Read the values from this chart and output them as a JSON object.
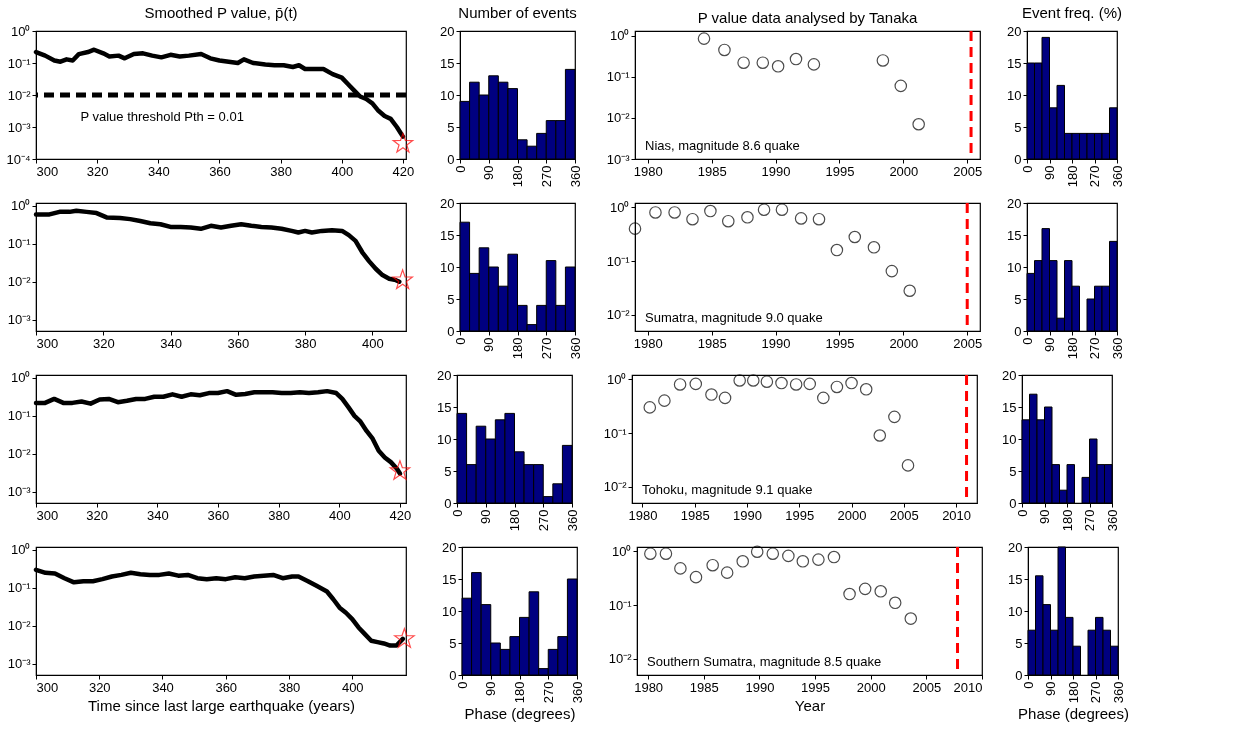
{
  "chart_data": [
    {
      "type": "line",
      "title": "Smoothed P value, p̄(t)",
      "log": true,
      "xlim": [
        300,
        421
      ],
      "xticks": [
        300,
        320,
        340,
        360,
        380,
        400,
        420
      ],
      "ylim": [
        0.0001,
        1
      ],
      "yticks": [
        {
          "value": 1,
          "label": "10⁰"
        },
        {
          "value": 0.1,
          "label": "10⁻¹"
        },
        {
          "value": 0.01,
          "label": "10⁻²"
        },
        {
          "value": 0.001,
          "label": "10⁻³"
        },
        {
          "value": 0.0001,
          "label": "10⁻⁴"
        }
      ],
      "series": [
        {
          "color": "#000000",
          "x": [
            300,
            303,
            306,
            308,
            310,
            312,
            314,
            317,
            319,
            322,
            324,
            327,
            329,
            332,
            335,
            338,
            341,
            344,
            347,
            350,
            354,
            357,
            360,
            363,
            366,
            368,
            371,
            375,
            378,
            381,
            384,
            386,
            388,
            391,
            394,
            397,
            400,
            402,
            404,
            406,
            408,
            410,
            412,
            414,
            416,
            418,
            420
          ],
          "values": [
            0.22,
            0.17,
            0.12,
            0.11,
            0.13,
            0.12,
            0.19,
            0.22,
            0.26,
            0.2,
            0.16,
            0.17,
            0.14,
            0.19,
            0.2,
            0.17,
            0.15,
            0.18,
            0.16,
            0.17,
            0.19,
            0.14,
            0.12,
            0.11,
            0.1,
            0.13,
            0.1,
            0.09,
            0.085,
            0.085,
            0.075,
            0.085,
            0.065,
            0.065,
            0.065,
            0.045,
            0.035,
            0.022,
            0.014,
            0.009,
            0.0075,
            0.0055,
            0.0032,
            0.0022,
            0.0018,
            0.001,
            0.0005
          ]
        },
        {
          "type": "scatter",
          "marker": "star",
          "color": "#ff0000",
          "x": [
            420
          ],
          "values": [
            0.0003
          ]
        }
      ],
      "ref_lines": [
        {
          "axis": "y",
          "value": 0.01,
          "label": "P value threshold Pth = 0.01",
          "color": "#000000",
          "line_style": "dashed"
        }
      ]
    },
    {
      "type": "histogram",
      "title": "Number of events",
      "bins": [
        0,
        30,
        60,
        90,
        120,
        150,
        180,
        210,
        240,
        270,
        300,
        330,
        360
      ],
      "values": [
        9,
        12,
        10,
        13,
        12,
        11,
        3,
        2,
        4,
        6,
        6,
        14
      ],
      "color": "#000080",
      "xlim": [
        0,
        360
      ],
      "xticks": [
        0,
        90,
        180,
        270,
        360
      ],
      "ylim": [
        0,
        20
      ],
      "yticks": [
        0,
        5,
        10,
        15,
        20
      ]
    },
    {
      "type": "scatter",
      "title": "P value data analysed by Tanaka",
      "marker": "circle",
      "color": "#000000",
      "log": true,
      "xlim": [
        1979,
        2006
      ],
      "xticks": [
        1980,
        1985,
        1990,
        1995,
        2000,
        2005
      ],
      "ylim": [
        0.001,
        1.3
      ],
      "yticks": [
        {
          "value": 1,
          "label": "10⁰"
        },
        {
          "value": 0.1,
          "label": "10⁻¹"
        },
        {
          "value": 0.01,
          "label": "10⁻²"
        },
        {
          "value": 0.001,
          "label": "10⁻³"
        }
      ],
      "x": [
        1984.4,
        1986,
        1987.5,
        1989,
        1990.2,
        1991.6,
        1993,
        1998.4,
        1999.8,
        2001.2
      ],
      "values": [
        0.85,
        0.45,
        0.22,
        0.22,
        0.18,
        0.27,
        0.2,
        0.25,
        0.06,
        0.007
      ],
      "ref_lines": [
        {
          "axis": "x",
          "value": 2005.3,
          "color": "#ff0000",
          "line_style": "dashed"
        }
      ],
      "annotations": [
        "Nias, magnitude 8.6 quake"
      ]
    },
    {
      "type": "histogram",
      "title": "Event freq. (%)",
      "bins": [
        0,
        30,
        60,
        90,
        120,
        150,
        180,
        210,
        240,
        270,
        300,
        330,
        360
      ],
      "values": [
        15,
        15,
        19,
        8,
        11.5,
        4,
        4,
        4,
        4,
        4,
        4,
        8
      ],
      "color": "#000080",
      "xlim": [
        0,
        360
      ],
      "xticks": [
        0,
        90,
        180,
        270,
        360
      ],
      "ylim": [
        0,
        20
      ],
      "yticks": [
        0,
        5,
        10,
        15,
        20
      ]
    },
    {
      "type": "line",
      "log": true,
      "xlim": [
        300,
        410
      ],
      "xticks": [
        300,
        320,
        340,
        360,
        380,
        400
      ],
      "ylim": [
        0.0005,
        1.2
      ],
      "yticks": [
        {
          "value": 1,
          "label": "10⁰"
        },
        {
          "value": 0.1,
          "label": "10⁻¹"
        },
        {
          "value": 0.01,
          "label": "10⁻²"
        },
        {
          "value": 0.001,
          "label": "10⁻³"
        }
      ],
      "series": [
        {
          "color": "#000000",
          "x": [
            300,
            304,
            307,
            310,
            312,
            315,
            318,
            321,
            325,
            328,
            331,
            334,
            337,
            340,
            343,
            346,
            349,
            352,
            355,
            358,
            361,
            364,
            367,
            370,
            373,
            376,
            378,
            380,
            382,
            385,
            388,
            391,
            393,
            395,
            397,
            399,
            401,
            403,
            405,
            407,
            408
          ],
          "values": [
            0.6,
            0.6,
            0.7,
            0.7,
            0.75,
            0.7,
            0.65,
            0.5,
            0.48,
            0.45,
            0.4,
            0.35,
            0.33,
            0.28,
            0.28,
            0.27,
            0.25,
            0.3,
            0.27,
            0.3,
            0.33,
            0.3,
            0.28,
            0.27,
            0.25,
            0.22,
            0.2,
            0.22,
            0.2,
            0.22,
            0.23,
            0.22,
            0.17,
            0.12,
            0.06,
            0.035,
            0.022,
            0.015,
            0.012,
            0.011,
            0.01
          ]
        },
        {
          "type": "scatter",
          "marker": "star",
          "color": "#ff0000",
          "x": [
            409
          ],
          "values": [
            0.011
          ]
        }
      ]
    },
    {
      "type": "histogram",
      "bins": [
        0,
        30,
        60,
        90,
        120,
        150,
        180,
        210,
        240,
        270,
        300,
        330,
        360
      ],
      "values": [
        17,
        9,
        13,
        10,
        7,
        12,
        4,
        1,
        4,
        11,
        4,
        10
      ],
      "color": "#000080",
      "xlim": [
        0,
        360
      ],
      "xticks": [
        0,
        90,
        180,
        270,
        360
      ],
      "ylim": [
        0,
        20
      ],
      "yticks": [
        0,
        5,
        10,
        15,
        20
      ]
    },
    {
      "type": "scatter",
      "marker": "circle",
      "color": "#000000",
      "log": true,
      "xlim": [
        1979,
        2006
      ],
      "xticks": [
        1980,
        1985,
        1990,
        1995,
        2000,
        2005
      ],
      "ylim": [
        0.005,
        1.2
      ],
      "yticks": [
        {
          "value": 1,
          "label": "10⁰"
        },
        {
          "value": 0.1,
          "label": "10⁻¹"
        },
        {
          "value": 0.01,
          "label": "10⁻²"
        }
      ],
      "x": [
        1979.0,
        1980.6,
        1982.1,
        1983.5,
        1984.9,
        1986.3,
        1987.8,
        1989.1,
        1990.5,
        1992.0,
        1993.4,
        1994.8,
        1996.2,
        1997.7,
        1999.1,
        2000.5
      ],
      "values": [
        0.4,
        0.8,
        0.8,
        0.6,
        0.85,
        0.55,
        0.65,
        0.9,
        0.9,
        0.62,
        0.6,
        0.16,
        0.28,
        0.18,
        0.065,
        0.028
      ],
      "ref_lines": [
        {
          "axis": "x",
          "value": 2005.0,
          "color": "#ff0000",
          "line_style": "dashed"
        }
      ],
      "annotations": [
        "Sumatra, magnitude 9.0 quake"
      ]
    },
    {
      "type": "histogram",
      "bins": [
        0,
        30,
        60,
        90,
        120,
        150,
        180,
        210,
        240,
        270,
        300,
        330,
        360
      ],
      "values": [
        9,
        11,
        16,
        11,
        2,
        11,
        7,
        0,
        5,
        7,
        7,
        14
      ],
      "color": "#000080",
      "xlim": [
        0,
        360
      ],
      "xticks": [
        0,
        90,
        180,
        270,
        360
      ],
      "ylim": [
        0,
        20
      ],
      "yticks": [
        0,
        5,
        10,
        15,
        20
      ]
    },
    {
      "type": "line",
      "log": true,
      "xlim": [
        300,
        422
      ],
      "xticks": [
        300,
        320,
        340,
        360,
        380,
        400,
        420
      ],
      "ylim": [
        0.0005,
        1.2
      ],
      "yticks": [
        {
          "value": 1,
          "label": "10⁰"
        },
        {
          "value": 0.1,
          "label": "10⁻¹"
        },
        {
          "value": 0.01,
          "label": "10⁻²"
        },
        {
          "value": 0.001,
          "label": "10⁻³"
        }
      ],
      "series": [
        {
          "color": "#000000",
          "x": [
            300,
            303,
            306,
            309,
            312,
            315,
            318,
            321,
            324,
            327,
            330,
            333,
            336,
            339,
            342,
            345,
            348,
            351,
            354,
            357,
            360,
            363,
            366,
            369,
            372,
            375,
            378,
            381,
            384,
            387,
            390,
            393,
            396,
            399,
            401,
            403,
            405,
            407,
            409,
            411,
            413,
            415,
            417,
            419,
            420
          ],
          "values": [
            0.22,
            0.22,
            0.28,
            0.22,
            0.22,
            0.24,
            0.21,
            0.27,
            0.28,
            0.23,
            0.25,
            0.28,
            0.28,
            0.32,
            0.32,
            0.37,
            0.32,
            0.37,
            0.35,
            0.4,
            0.4,
            0.45,
            0.36,
            0.38,
            0.42,
            0.42,
            0.42,
            0.4,
            0.4,
            0.42,
            0.4,
            0.42,
            0.45,
            0.4,
            0.28,
            0.17,
            0.1,
            0.07,
            0.04,
            0.025,
            0.012,
            0.008,
            0.006,
            0.004,
            0.003
          ]
        },
        {
          "type": "scatter",
          "marker": "star",
          "color": "#ff0000",
          "x": [
            420
          ],
          "values": [
            0.0035
          ]
        }
      ]
    },
    {
      "type": "histogram",
      "bins": [
        0,
        30,
        60,
        90,
        120,
        150,
        180,
        210,
        240,
        270,
        300,
        330,
        360
      ],
      "values": [
        14,
        6,
        12,
        10,
        13,
        14,
        8,
        6,
        6,
        1,
        3,
        9
      ],
      "color": "#000080",
      "xlim": [
        0,
        360
      ],
      "xticks": [
        0,
        90,
        180,
        270,
        360
      ],
      "ylim": [
        0,
        20
      ],
      "yticks": [
        0,
        5,
        10,
        15,
        20
      ]
    },
    {
      "type": "scatter",
      "marker": "circle",
      "color": "#000000",
      "log": true,
      "xlim": [
        1979,
        2012
      ],
      "xticks": [
        1980,
        1985,
        1990,
        1995,
        2000,
        2005,
        2010
      ],
      "ylim": [
        0.005,
        1.2
      ],
      "yticks": [
        {
          "value": 1,
          "label": "10⁰"
        },
        {
          "value": 0.1,
          "label": "10⁻¹"
        },
        {
          "value": 0.01,
          "label": "10⁻²"
        }
      ],
      "x": [
        1980.7,
        1982.1,
        1983.6,
        1985.1,
        1986.6,
        1987.9,
        1989.3,
        1990.6,
        1991.9,
        1993.3,
        1994.7,
        1996.0,
        1997.3,
        1998.6,
        2000.0,
        2001.4,
        2002.7,
        2004.1,
        2005.4
      ],
      "values": [
        0.3,
        0.4,
        0.8,
        0.82,
        0.52,
        0.45,
        0.95,
        0.95,
        0.9,
        0.85,
        0.8,
        0.82,
        0.45,
        0.72,
        0.85,
        0.65,
        0.09,
        0.2,
        0.025
      ],
      "ref_lines": [
        {
          "axis": "x",
          "value": 2011,
          "color": "#ff0000",
          "line_style": "dashed"
        }
      ],
      "annotations": [
        "Tohoku, magnitude 9.1 quake"
      ]
    },
    {
      "type": "histogram",
      "bins": [
        0,
        30,
        60,
        90,
        120,
        150,
        180,
        210,
        240,
        270,
        300,
        330,
        360
      ],
      "values": [
        13,
        17,
        13,
        15,
        6,
        2,
        6,
        0,
        4,
        10,
        6,
        6
      ],
      "color": "#000080",
      "xlim": [
        0,
        360
      ],
      "xticks": [
        0,
        90,
        180,
        270,
        360
      ],
      "ylim": [
        0,
        20
      ],
      "yticks": [
        0,
        5,
        10,
        15,
        20
      ]
    },
    {
      "type": "line",
      "xlabel": "Time since last large earthquake (years)",
      "log": true,
      "xlim": [
        300,
        417
      ],
      "xticks": [
        300,
        320,
        340,
        360,
        380,
        400
      ],
      "ylim": [
        0.0005,
        1.2
      ],
      "yticks": [
        {
          "value": 1,
          "label": "10⁰"
        },
        {
          "value": 0.1,
          "label": "10⁻¹"
        },
        {
          "value": 0.01,
          "label": "10⁻²"
        },
        {
          "value": 0.001,
          "label": "10⁻³"
        }
      ],
      "series": [
        {
          "color": "#000000",
          "x": [
            300,
            303,
            306,
            309,
            312,
            315,
            318,
            321,
            324,
            327,
            330,
            333,
            336,
            339,
            342,
            345,
            348,
            351,
            354,
            357,
            360,
            363,
            366,
            369,
            372,
            375,
            378,
            381,
            383,
            386,
            389,
            392,
            394,
            396,
            398,
            400,
            402,
            404,
            406,
            408,
            410,
            412,
            414,
            416
          ],
          "values": [
            0.3,
            0.25,
            0.24,
            0.18,
            0.14,
            0.15,
            0.15,
            0.17,
            0.2,
            0.22,
            0.25,
            0.23,
            0.22,
            0.22,
            0.24,
            0.21,
            0.22,
            0.18,
            0.17,
            0.18,
            0.17,
            0.19,
            0.18,
            0.2,
            0.21,
            0.22,
            0.18,
            0.2,
            0.2,
            0.15,
            0.11,
            0.08,
            0.05,
            0.03,
            0.022,
            0.015,
            0.009,
            0.006,
            0.004,
            0.0037,
            0.0034,
            0.003,
            0.003,
            0.0045
          ]
        },
        {
          "type": "scatter",
          "marker": "star",
          "color": "#ff0000",
          "x": [
            416.5
          ],
          "values": [
            0.0045
          ]
        }
      ]
    },
    {
      "type": "histogram",
      "xlabel": "Phase (degrees)",
      "bins": [
        0,
        30,
        60,
        90,
        120,
        150,
        180,
        210,
        240,
        270,
        300,
        330,
        360
      ],
      "values": [
        12,
        16,
        11,
        5,
        4,
        6,
        9,
        13,
        1,
        4,
        6,
        15
      ],
      "color": "#000080",
      "xlim": [
        0,
        360
      ],
      "xticks": [
        0,
        90,
        180,
        270,
        360
      ],
      "ylim": [
        0,
        20
      ],
      "yticks": [
        0,
        5,
        10,
        15,
        20
      ]
    },
    {
      "type": "scatter",
      "xlabel": "Year",
      "marker": "circle",
      "color": "#000000",
      "log": true,
      "xlim": [
        1979,
        2010
      ],
      "xticks": [
        1980,
        1985,
        1990,
        1995,
        2000,
        2005,
        2010
      ],
      "ylim": [
        0.005,
        1.2
      ],
      "yticks": [
        {
          "value": 1,
          "label": "10⁰"
        },
        {
          "value": 0.1,
          "label": "10⁻¹"
        },
        {
          "value": 0.01,
          "label": "10⁻²"
        }
      ],
      "x": [
        1980.2,
        1981.6,
        1982.9,
        1984.3,
        1985.8,
        1987.1,
        1988.5,
        1989.8,
        1991.2,
        1992.6,
        1993.9,
        1995.3,
        1996.7,
        1998.1,
        1999.5,
        2000.9,
        2002.2,
        2003.6
      ],
      "values": [
        0.9,
        0.9,
        0.48,
        0.33,
        0.55,
        0.4,
        0.65,
        0.98,
        0.9,
        0.82,
        0.65,
        0.7,
        0.78,
        0.16,
        0.2,
        0.18,
        0.11,
        0.056
      ],
      "ref_lines": [
        {
          "axis": "x",
          "value": 2007.8,
          "color": "#ff0000",
          "line_style": "dashed"
        }
      ],
      "annotations": [
        "Southern Sumatra, magnitude 8.5 quake"
      ]
    },
    {
      "type": "histogram",
      "xlabel": "Phase (degrees)",
      "bins": [
        0,
        30,
        60,
        90,
        120,
        150,
        180,
        210,
        240,
        270,
        300,
        330,
        360
      ],
      "values": [
        7,
        15.5,
        11,
        7,
        20,
        9,
        4.5,
        0,
        7,
        9,
        7,
        4.5
      ],
      "color": "#000080",
      "xlim": [
        0,
        360
      ],
      "xticks": [
        0,
        90,
        180,
        270,
        360
      ],
      "ylim": [
        0,
        20
      ],
      "yticks": [
        0,
        5,
        10,
        15,
        20
      ]
    }
  ]
}
